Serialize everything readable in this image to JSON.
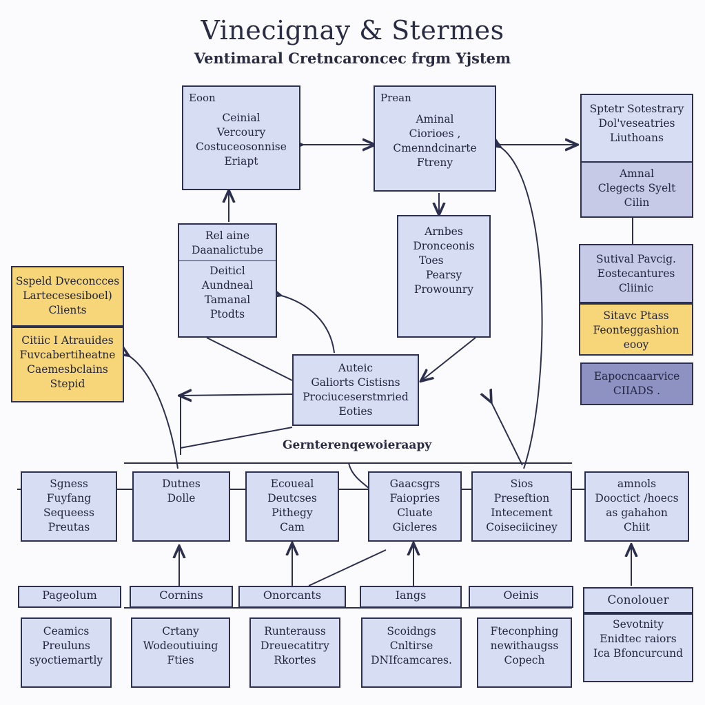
{
  "title": "Vinecignay & Stermes",
  "subtitle": "Ventimaral Cretncaroncec frgm Yjstem",
  "top": {
    "left": {
      "caption": "Eoon",
      "lines": [
        "Ceinial",
        "Vercoury",
        "Costuceosonnise",
        "Eriapt"
      ]
    },
    "center": {
      "caption": "Prean",
      "lines": [
        "Aminal",
        "Ciorioes ,",
        "Cmenndcinarte",
        "Ftreny"
      ]
    },
    "right": {
      "lines": [
        "Sptetr Sotestrary",
        "Dol'veseatries",
        "Liuthoans"
      ]
    }
  },
  "right_column": {
    "box1": {
      "lines": [
        "Amnal",
        "Clegects Syelt",
        "Cilin"
      ]
    },
    "box2": {
      "lines": [
        "Sutival Pavcig.",
        "Eostecantures",
        "Cliinic"
      ]
    },
    "box3": {
      "lines": [
        "Sitavc Ptass",
        "Feonteggashion",
        "eooy"
      ]
    },
    "box4": {
      "lines": [
        "Eapocncaarvice",
        "CIIADS ."
      ]
    }
  },
  "mid": {
    "left": {
      "header": "Rel aine",
      "sub": "Daanalictube",
      "lines": [
        "Deiticl",
        "Aundneal",
        "Tamanal",
        "Ptodts"
      ]
    },
    "right": {
      "lines": [
        "Arnbes",
        "Dronceonis"
      ],
      "tag": "Toes",
      "lines2": [
        "Pearsy",
        "Prowounry"
      ]
    }
  },
  "yellow_left": {
    "top": {
      "lines": [
        "Sspeld Dveconcces",
        "Lartecesesiboel)",
        "Clients"
      ]
    },
    "bottom": {
      "lines": [
        "Citiic I Atrauides",
        "Fuvcabertiheatne",
        "Caemesbclains",
        "Stepid"
      ]
    }
  },
  "center": {
    "lines": [
      "Auteic",
      "Galiorts Cistisns",
      "Prociuceserstmried",
      "Eoties"
    ]
  },
  "section_label": "Gernterenqewoieraapy",
  "row1": [
    {
      "lines": [
        "Sgness",
        "Fuyfang",
        "Sequeess",
        "Preutas"
      ]
    },
    {
      "lines": [
        "Dutnes",
        "Dolle"
      ]
    },
    {
      "lines": [
        "Ecoueal",
        "Deutcses",
        "Pithegy",
        "Cam"
      ]
    },
    {
      "lines": [
        "Gaacsgrs",
        "Faiopries",
        "Cluate",
        "Gicleres"
      ]
    },
    {
      "lines": [
        "Sios",
        "Preseftion",
        "Intecement",
        "Coiseciiciney"
      ]
    },
    {
      "lines": [
        "amnols",
        "Dooctict /hoecs",
        "as gahahon",
        "Chiit"
      ]
    }
  ],
  "row2_labels": [
    "Pageolum",
    "Cornins",
    "Onorcants",
    "Iangs",
    "Oeinis",
    "Conolouer"
  ],
  "row2": [
    {
      "lines": [
        "Ceamics",
        "Preuluns",
        "syoctiemartly"
      ]
    },
    {
      "lines": [
        "Crtany",
        "Wodeoutiuing",
        "Fties"
      ]
    },
    {
      "lines": [
        "Runterauss",
        "Dreuecatitry",
        "Rkortes"
      ]
    },
    {
      "lines": [
        "Scoidngs",
        "Cnltirse",
        "DNIfcamcares."
      ]
    },
    {
      "lines": [
        "Fteconphing",
        "newithaugss",
        "Copech"
      ]
    },
    {
      "lines": [
        "Sevotnity",
        "Enidtec raiors",
        "Ica Bfoncurcund"
      ]
    }
  ]
}
